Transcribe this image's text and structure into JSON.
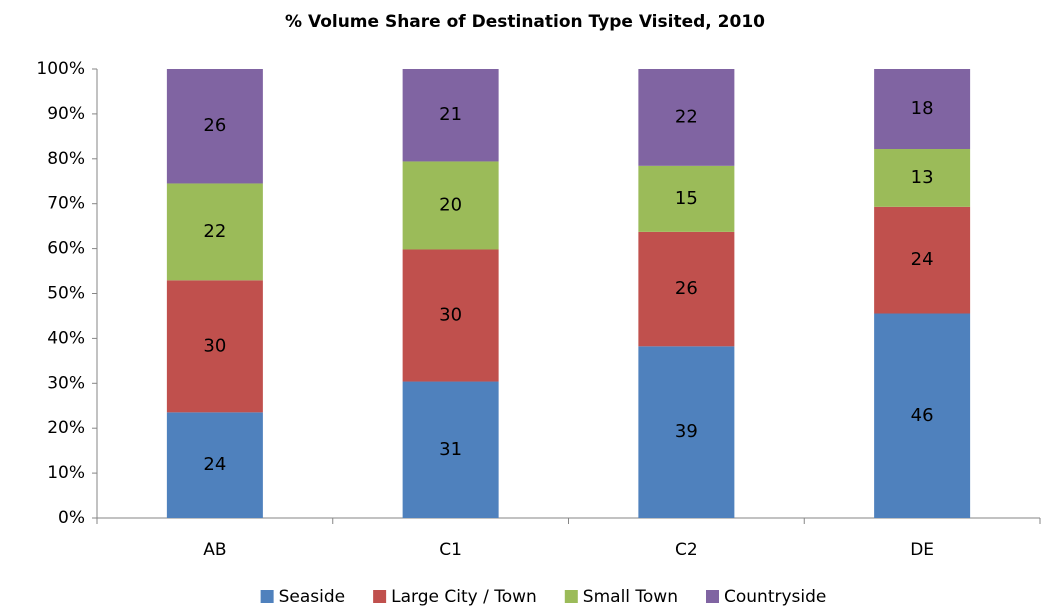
{
  "chart_data": {
    "type": "bar",
    "stacked": "percent",
    "title": "% Volume Share of Destination Type Visited, 2010",
    "categories": [
      "AB",
      "C1",
      "C2",
      "DE"
    ],
    "series": [
      {
        "name": "Seaside",
        "color": "#4f81bd",
        "values": [
          24,
          31,
          39,
          46
        ]
      },
      {
        "name": "Large City / Town",
        "color": "#c0504d",
        "values": [
          30,
          30,
          26,
          24
        ]
      },
      {
        "name": "Small Town",
        "color": "#9bbb59",
        "values": [
          22,
          20,
          15,
          13
        ]
      },
      {
        "name": "Countryside",
        "color": "#8064a2",
        "values": [
          26,
          21,
          22,
          18
        ]
      }
    ],
    "ylim": [
      0,
      100
    ],
    "yticks": [
      {
        "value": 0,
        "label": "0%"
      },
      {
        "value": 10,
        "label": "10%"
      },
      {
        "value": 20,
        "label": "20%"
      },
      {
        "value": 30,
        "label": "30%"
      },
      {
        "value": 40,
        "label": "40%"
      },
      {
        "value": 50,
        "label": "50%"
      },
      {
        "value": 60,
        "label": "60%"
      },
      {
        "value": 70,
        "label": "70%"
      },
      {
        "value": 80,
        "label": "80%"
      },
      {
        "value": 90,
        "label": "90%"
      },
      {
        "value": 100,
        "label": "100%"
      }
    ],
    "grid": false,
    "legend": "bottom"
  }
}
